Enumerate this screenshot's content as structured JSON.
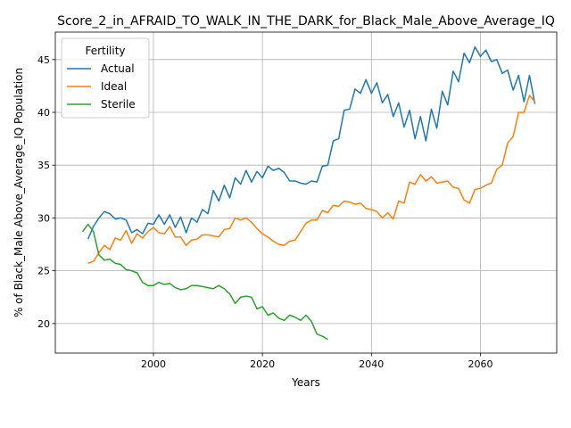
{
  "chart_data": {
    "type": "line",
    "title": "Score_2_in_AFRAID_TO_WALK_IN_THE_DARK_for_Black_Male_Above_Average_IQ",
    "xlabel": "Years",
    "ylabel": "% of Black_Male Above_Average_IQ Population",
    "xlim": [
      1982,
      2074
    ],
    "ylim": [
      17.2,
      47.6
    ],
    "xticks": [
      2000,
      2020,
      2040,
      2060
    ],
    "yticks": [
      20,
      25,
      30,
      35,
      40,
      45
    ],
    "grid": true,
    "legend": {
      "title": "Fertility",
      "placement": "top-left"
    },
    "series": [
      {
        "name": "Actual",
        "color": "#1f77b4",
        "x": [
          1988,
          1989,
          1990,
          1991,
          1992,
          1993,
          1994,
          1995,
          1996,
          1997,
          1998,
          1999,
          2000,
          2001,
          2002,
          2003,
          2004,
          2005,
          2006,
          2007,
          2008,
          2009,
          2010,
          2011,
          2012,
          2013,
          2014,
          2015,
          2016,
          2017,
          2018,
          2019,
          2020,
          2021,
          2022,
          2023,
          2024,
          2025,
          2026,
          2027,
          2028,
          2029,
          2030,
          2031,
          2032,
          2033,
          2034,
          2035,
          2036,
          2037,
          2038,
          2039,
          2040,
          2041,
          2042,
          2043,
          2044,
          2045,
          2046,
          2047,
          2048,
          2049,
          2050,
          2051,
          2052,
          2053,
          2054,
          2055,
          2056,
          2057,
          2058,
          2059,
          2060,
          2061,
          2062,
          2063,
          2064,
          2065,
          2066,
          2067,
          2068,
          2069,
          2070
        ],
        "values": [
          28.0,
          29.2,
          30.0,
          30.6,
          30.4,
          29.9,
          30.0,
          29.8,
          28.6,
          28.9,
          28.5,
          29.5,
          29.4,
          30.3,
          29.4,
          30.3,
          29.1,
          30.1,
          28.6,
          30.0,
          29.6,
          30.8,
          30.4,
          32.6,
          31.6,
          33.1,
          31.9,
          33.8,
          33.2,
          34.5,
          33.4,
          34.4,
          33.8,
          34.9,
          34.5,
          34.7,
          34.3,
          33.5,
          33.5,
          33.3,
          33.2,
          33.5,
          33.4,
          34.9,
          35.0,
          37.3,
          37.5,
          40.2,
          40.3,
          42.2,
          41.8,
          43.1,
          41.8,
          42.8,
          40.9,
          41.7,
          39.6,
          40.9,
          38.6,
          40.2,
          37.5,
          39.6,
          37.3,
          40.3,
          38.5,
          42.0,
          40.7,
          43.9,
          42.9,
          45.6,
          44.7,
          46.2,
          45.3,
          45.9,
          44.8,
          45.0,
          43.7,
          44.0,
          42.1,
          43.5,
          41.0,
          43.5,
          40.8
        ]
      },
      {
        "name": "Ideal",
        "color": "#ff7f0e",
        "x": [
          1988,
          1989,
          1990,
          1991,
          1992,
          1993,
          1994,
          1995,
          1996,
          1997,
          1998,
          1999,
          2000,
          2001,
          2002,
          2003,
          2004,
          2005,
          2006,
          2007,
          2008,
          2009,
          2010,
          2011,
          2012,
          2013,
          2014,
          2015,
          2016,
          2017,
          2018,
          2019,
          2020,
          2021,
          2022,
          2023,
          2024,
          2025,
          2026,
          2027,
          2028,
          2029,
          2030,
          2031,
          2032,
          2033,
          2034,
          2035,
          2036,
          2037,
          2038,
          2039,
          2040,
          2041,
          2042,
          2043,
          2044,
          2045,
          2046,
          2047,
          2048,
          2049,
          2050,
          2051,
          2052,
          2053,
          2054,
          2055,
          2056,
          2057,
          2058,
          2059,
          2060,
          2061,
          2062,
          2063,
          2064,
          2065,
          2066,
          2067,
          2068,
          2069,
          2070
        ],
        "values": [
          25.7,
          25.9,
          26.7,
          27.4,
          27.0,
          28.1,
          27.9,
          28.8,
          27.6,
          28.5,
          28.1,
          28.7,
          29.1,
          28.6,
          28.5,
          29.2,
          28.2,
          28.2,
          27.4,
          27.9,
          28.0,
          28.4,
          28.4,
          28.3,
          28.2,
          28.9,
          29.0,
          30.0,
          29.8,
          30.0,
          29.6,
          29.0,
          28.5,
          28.2,
          27.8,
          27.5,
          27.4,
          27.8,
          27.9,
          28.7,
          29.5,
          29.8,
          29.8,
          30.7,
          30.5,
          31.2,
          31.1,
          31.6,
          31.5,
          31.3,
          31.4,
          30.9,
          30.8,
          30.6,
          30.0,
          30.5,
          29.9,
          31.6,
          31.4,
          33.4,
          33.2,
          34.1,
          33.5,
          33.9,
          33.3,
          33.4,
          33.5,
          32.9,
          32.8,
          31.7,
          31.4,
          32.7,
          32.8,
          33.1,
          33.3,
          34.6,
          35.0,
          37.1,
          37.7,
          40.0,
          40.0,
          41.6,
          41.0
        ]
      },
      {
        "name": "Sterile",
        "color": "#2ca02c",
        "x": [
          1987,
          1988,
          1989,
          1990,
          1991,
          1992,
          1993,
          1994,
          1995,
          1996,
          1997,
          1998,
          1999,
          2000,
          2001,
          2002,
          2003,
          2004,
          2005,
          2006,
          2007,
          2008,
          2009,
          2010,
          2011,
          2012,
          2013,
          2014,
          2015,
          2016,
          2017,
          2018,
          2019,
          2020,
          2021,
          2022,
          2023,
          2024,
          2025,
          2026,
          2027,
          2028,
          2029,
          2030,
          2031,
          2032
        ],
        "values": [
          28.7,
          29.4,
          28.7,
          26.5,
          26.0,
          26.1,
          25.7,
          25.6,
          25.1,
          25.0,
          24.8,
          23.9,
          23.6,
          23.6,
          23.9,
          23.7,
          23.8,
          23.4,
          23.2,
          23.3,
          23.6,
          23.6,
          23.5,
          23.4,
          23.3,
          23.6,
          23.3,
          22.8,
          21.9,
          22.5,
          22.6,
          22.5,
          21.4,
          21.6,
          20.8,
          21.0,
          20.5,
          20.3,
          20.8,
          20.6,
          20.3,
          20.8,
          20.2,
          19.0,
          18.8,
          18.5
        ]
      }
    ]
  }
}
